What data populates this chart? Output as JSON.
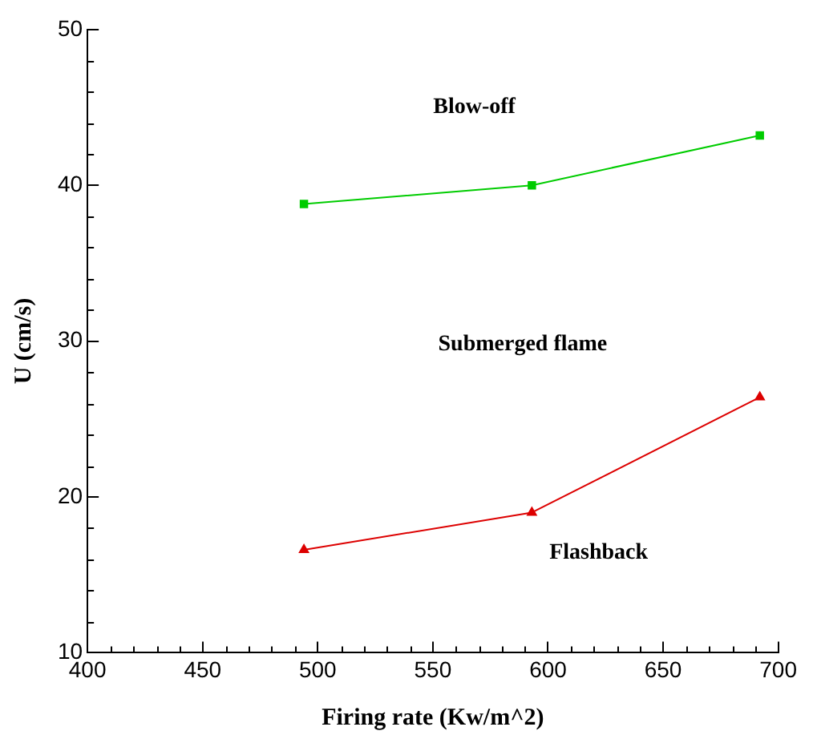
{
  "chart_data": {
    "type": "line",
    "xlabel": "Firing rate (Kw/m^2)",
    "ylabel": "U (cm/s)",
    "xlim": [
      400,
      700
    ],
    "xticks": [
      400,
      450,
      500,
      550,
      600,
      650,
      700
    ],
    "ylim": [
      10,
      50
    ],
    "yticks": [
      10,
      20,
      30,
      40,
      50
    ],
    "grid": false,
    "legend": false,
    "line_style": "solid",
    "series": [
      {
        "color": "#00cc00",
        "marker": "square",
        "x": [
          494,
          593,
          692
        ],
        "values": [
          38.8,
          40.0,
          43.2
        ]
      },
      {
        "color": "#dd0000",
        "marker": "triangle",
        "x": [
          494,
          593,
          692
        ],
        "values": [
          16.6,
          19.0,
          26.4
        ]
      }
    ],
    "annotations": [
      "Blow-off",
      "Submerged flame",
      "Flashback"
    ]
  }
}
